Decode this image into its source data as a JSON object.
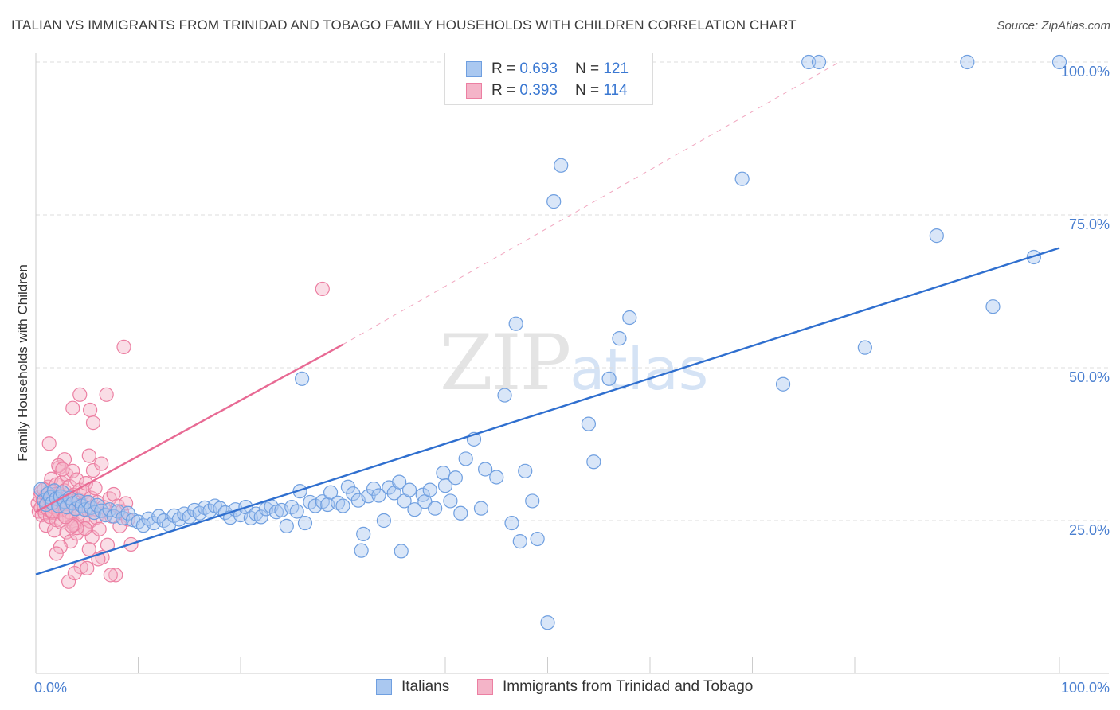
{
  "header": {
    "title": "ITALIAN VS IMMIGRANTS FROM TRINIDAD AND TOBAGO FAMILY HOUSEHOLDS WITH CHILDREN CORRELATION CHART",
    "source": "Source: ZipAtlas.com"
  },
  "watermark": {
    "zip": "ZIP",
    "atlas": "atlas"
  },
  "legend_top": {
    "rows": [
      {
        "r_label": "R = ",
        "r_value": "0.693",
        "n_label": "N = ",
        "n_value": "121"
      },
      {
        "r_label": "R = ",
        "r_value": "0.393",
        "n_label": "N = ",
        "n_value": "114"
      }
    ]
  },
  "legend_bottom": {
    "series1": "Italians",
    "series2": "Immigrants from Trinidad and Tobago"
  },
  "colors": {
    "blue_fill": "#aac8f0",
    "blue_stroke": "#6f9fe0",
    "blue_line": "#2f6fcf",
    "pink_fill": "#f4b4c8",
    "pink_stroke": "#ec7fa2",
    "pink_line": "#e86a94",
    "tick_text": "#4a7fd0",
    "grid": "#dddddd"
  },
  "chart_data": {
    "type": "scatter",
    "title": "ITALIAN VS IMMIGRANTS FROM TRINIDAD AND TOBAGO FAMILY HOUSEHOLDS WITH CHILDREN CORRELATION CHART",
    "xlabel": "",
    "ylabel": "Family Households with Children",
    "xlim": [
      0,
      100
    ],
    "ylim": [
      0,
      104
    ],
    "x_tick_labels": [
      "0.0%",
      "100.0%"
    ],
    "y_ticks": [
      25,
      50,
      75,
      100
    ],
    "y_tick_labels": [
      "25.0%",
      "50.0%",
      "75.0%",
      "100.0%"
    ],
    "grid": true,
    "series": [
      {
        "name": "Italians",
        "R": 0.693,
        "N": 121,
        "trend": {
          "x": [
            0,
            100
          ],
          "y": [
            16.2,
            69.6
          ],
          "style": "solid"
        },
        "points": [
          [
            0.5,
            30.1
          ],
          [
            0.8,
            28.3
          ],
          [
            1.0,
            27.6
          ],
          [
            1.2,
            29.4
          ],
          [
            1.4,
            28.8
          ],
          [
            1.6,
            27.9
          ],
          [
            1.8,
            29.9
          ],
          [
            2.0,
            28.6
          ],
          [
            2.2,
            27.4
          ],
          [
            2.4,
            28.9
          ],
          [
            2.6,
            29.6
          ],
          [
            2.8,
            28.1
          ],
          [
            3.0,
            27.2
          ],
          [
            3.3,
            28.7
          ],
          [
            3.6,
            27.8
          ],
          [
            3.9,
            26.9
          ],
          [
            4.2,
            28.2
          ],
          [
            4.5,
            27.4
          ],
          [
            4.8,
            26.8
          ],
          [
            5.1,
            28.0
          ],
          [
            5.4,
            27.1
          ],
          [
            5.7,
            26.3
          ],
          [
            6.0,
            27.5
          ],
          [
            6.4,
            26.6
          ],
          [
            6.8,
            25.9
          ],
          [
            7.2,
            26.8
          ],
          [
            7.6,
            25.7
          ],
          [
            8.0,
            26.5
          ],
          [
            8.5,
            25.4
          ],
          [
            9.0,
            26.2
          ],
          [
            9.5,
            25.1
          ],
          [
            10.0,
            24.8
          ],
          [
            10.5,
            24.2
          ],
          [
            11.0,
            25.3
          ],
          [
            11.5,
            24.6
          ],
          [
            12.0,
            25.7
          ],
          [
            12.5,
            25.0
          ],
          [
            13.0,
            24.3
          ],
          [
            13.5,
            25.8
          ],
          [
            14.0,
            25.2
          ],
          [
            14.5,
            26.1
          ],
          [
            15.0,
            25.6
          ],
          [
            15.5,
            26.7
          ],
          [
            16.0,
            26.2
          ],
          [
            16.5,
            27.1
          ],
          [
            17.0,
            26.6
          ],
          [
            17.5,
            27.4
          ],
          [
            18.0,
            27.0
          ],
          [
            18.5,
            26.3
          ],
          [
            19.0,
            25.5
          ],
          [
            19.5,
            26.8
          ],
          [
            20.0,
            25.9
          ],
          [
            20.5,
            27.2
          ],
          [
            21.0,
            25.4
          ],
          [
            21.5,
            26.1
          ],
          [
            22.0,
            25.6
          ],
          [
            22.5,
            26.9
          ],
          [
            23.0,
            27.3
          ],
          [
            23.5,
            26.4
          ],
          [
            24.0,
            26.7
          ],
          [
            24.5,
            24.1
          ],
          [
            25.0,
            27.2
          ],
          [
            25.5,
            26.5
          ],
          [
            25.8,
            29.8
          ],
          [
            26.3,
            24.6
          ],
          [
            26.8,
            28.0
          ],
          [
            27.3,
            27.4
          ],
          [
            28.0,
            28.1
          ],
          [
            28.5,
            27.6
          ],
          [
            28.8,
            29.6
          ],
          [
            29.5,
            27.9
          ],
          [
            30.0,
            27.4
          ],
          [
            30.5,
            30.5
          ],
          [
            31.0,
            29.4
          ],
          [
            31.5,
            28.3
          ],
          [
            32.0,
            22.8
          ],
          [
            32.5,
            29.0
          ],
          [
            33.0,
            30.2
          ],
          [
            33.5,
            29.1
          ],
          [
            34.0,
            25.0
          ],
          [
            34.5,
            30.4
          ],
          [
            35.0,
            29.5
          ],
          [
            35.5,
            31.3
          ],
          [
            36.0,
            28.2
          ],
          [
            36.5,
            30.0
          ],
          [
            37.0,
            26.8
          ],
          [
            37.8,
            29.2
          ],
          [
            38.0,
            28.1
          ],
          [
            38.5,
            30.0
          ],
          [
            39.0,
            27.0
          ],
          [
            39.8,
            32.8
          ],
          [
            40.0,
            30.7
          ],
          [
            40.5,
            28.2
          ],
          [
            41.0,
            32.0
          ],
          [
            41.5,
            26.2
          ],
          [
            42.0,
            35.1
          ],
          [
            42.8,
            38.3
          ],
          [
            43.5,
            27.0
          ],
          [
            43.9,
            33.4
          ],
          [
            45.0,
            32.1
          ],
          [
            45.8,
            45.5
          ],
          [
            46.5,
            24.6
          ],
          [
            46.9,
            57.2
          ],
          [
            47.3,
            21.6
          ],
          [
            47.8,
            33.1
          ],
          [
            48.5,
            28.2
          ],
          [
            49.0,
            22.0
          ],
          [
            50.0,
            8.3
          ],
          [
            50.6,
            77.2
          ],
          [
            51.3,
            83.1
          ],
          [
            54.0,
            40.8
          ],
          [
            54.5,
            34.6
          ],
          [
            56.0,
            48.2
          ],
          [
            57.0,
            54.8
          ],
          [
            58.0,
            58.2
          ],
          [
            69.0,
            80.9
          ],
          [
            73.0,
            47.3
          ],
          [
            75.5,
            100.0
          ],
          [
            76.5,
            100.0
          ],
          [
            81.0,
            53.3
          ],
          [
            91.0,
            100.0
          ],
          [
            100.0,
            100.0
          ],
          [
            26.0,
            48.2
          ],
          [
            31.8,
            20.1
          ],
          [
            35.7,
            20.0
          ],
          [
            93.5,
            60.0
          ],
          [
            88.0,
            71.6
          ],
          [
            97.5,
            68.1
          ]
        ]
      },
      {
        "name": "Immigrants from Trinidad and Tobago",
        "R": 0.393,
        "N": 114,
        "trend": {
          "x": [
            0,
            30,
            78.5
          ],
          "y": [
            26.4,
            53.8,
            100.0
          ],
          "style": "solid-then-dashed"
        },
        "points": [
          [
            0.2,
            27.8
          ],
          [
            0.3,
            26.5
          ],
          [
            0.4,
            28.9
          ],
          [
            0.5,
            27.1
          ],
          [
            0.5,
            29.6
          ],
          [
            0.6,
            25.9
          ],
          [
            0.7,
            28.4
          ],
          [
            0.8,
            27.3
          ],
          [
            0.9,
            26.2
          ],
          [
            1.0,
            29.1
          ],
          [
            1.0,
            24.2
          ],
          [
            1.1,
            27.9
          ],
          [
            1.2,
            26.8
          ],
          [
            1.2,
            30.5
          ],
          [
            1.3,
            28.6
          ],
          [
            1.4,
            25.6
          ],
          [
            1.5,
            27.4
          ],
          [
            1.5,
            31.8
          ],
          [
            1.6,
            26.3
          ],
          [
            1.7,
            29.7
          ],
          [
            1.8,
            28.0
          ],
          [
            1.8,
            23.4
          ],
          [
            1.9,
            27.0
          ],
          [
            2.0,
            30.9
          ],
          [
            2.0,
            25.1
          ],
          [
            2.1,
            28.8
          ],
          [
            2.2,
            26.6
          ],
          [
            2.3,
            33.7
          ],
          [
            2.3,
            29.4
          ],
          [
            2.4,
            27.5
          ],
          [
            2.5,
            24.7
          ],
          [
            2.5,
            31.2
          ],
          [
            2.6,
            28.3
          ],
          [
            2.7,
            26.0
          ],
          [
            2.8,
            35.0
          ],
          [
            2.8,
            29.9
          ],
          [
            2.9,
            27.7
          ],
          [
            3.0,
            23.1
          ],
          [
            3.0,
            32.5
          ],
          [
            3.1,
            28.9
          ],
          [
            3.2,
            26.4
          ],
          [
            3.3,
            30.6
          ],
          [
            3.4,
            21.6
          ],
          [
            3.4,
            28.1
          ],
          [
            3.5,
            25.3
          ],
          [
            3.6,
            33.1
          ],
          [
            3.7,
            29.2
          ],
          [
            3.8,
            27.0
          ],
          [
            3.9,
            24.4
          ],
          [
            4.0,
            31.7
          ],
          [
            4.0,
            22.9
          ],
          [
            4.1,
            28.5
          ],
          [
            4.2,
            26.1
          ],
          [
            4.3,
            30.0
          ],
          [
            4.4,
            17.4
          ],
          [
            4.5,
            27.6
          ],
          [
            4.6,
            25.2
          ],
          [
            4.7,
            29.6
          ],
          [
            4.8,
            23.7
          ],
          [
            4.9,
            31.1
          ],
          [
            5.0,
            27.9
          ],
          [
            5.1,
            26.7
          ],
          [
            5.2,
            35.6
          ],
          [
            5.3,
            24.9
          ],
          [
            5.4,
            28.7
          ],
          [
            5.5,
            22.3
          ],
          [
            5.6,
            33.2
          ],
          [
            5.7,
            26.9
          ],
          [
            5.8,
            30.3
          ],
          [
            5.9,
            25.5
          ],
          [
            6.0,
            28.0
          ],
          [
            6.2,
            23.6
          ],
          [
            6.4,
            34.3
          ],
          [
            6.6,
            27.2
          ],
          [
            6.8,
            26.0
          ],
          [
            7.0,
            21.0
          ],
          [
            7.2,
            28.6
          ],
          [
            7.4,
            25.7
          ],
          [
            7.6,
            29.3
          ],
          [
            7.8,
            16.1
          ],
          [
            8.0,
            27.4
          ],
          [
            8.2,
            24.1
          ],
          [
            8.4,
            26.5
          ],
          [
            8.6,
            53.4
          ],
          [
            8.8,
            27.8
          ],
          [
            9.0,
            25.2
          ],
          [
            9.3,
            21.1
          ],
          [
            1.3,
            37.6
          ],
          [
            2.2,
            34.0
          ],
          [
            2.6,
            33.4
          ],
          [
            2.4,
            20.7
          ],
          [
            2.0,
            19.6
          ],
          [
            3.6,
            43.4
          ],
          [
            3.2,
            15.0
          ],
          [
            3.8,
            16.4
          ],
          [
            5.0,
            17.2
          ],
          [
            5.6,
            41.0
          ],
          [
            5.3,
            43.1
          ],
          [
            4.8,
            23.7
          ],
          [
            6.5,
            19.0
          ],
          [
            6.9,
            45.6
          ],
          [
            4.0,
            23.8
          ],
          [
            3.7,
            24.3
          ],
          [
            5.2,
            20.3
          ],
          [
            4.3,
            45.6
          ],
          [
            3.5,
            24.1
          ],
          [
            6.1,
            18.7
          ],
          [
            7.3,
            16.1
          ],
          [
            28.0,
            62.9
          ],
          [
            1.6,
            26.5
          ],
          [
            2.9,
            25.6
          ],
          [
            0.8,
            30.1
          ],
          [
            1.9,
            29.3
          ],
          [
            3.1,
            27.2
          ]
        ]
      }
    ]
  }
}
